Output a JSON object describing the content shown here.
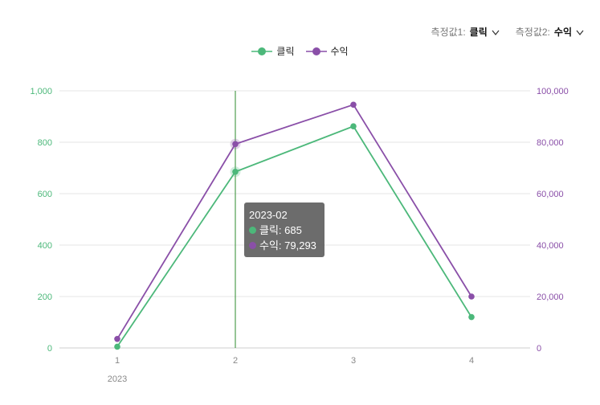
{
  "measures": [
    {
      "label": "측정값1:",
      "value": "클릭",
      "icon": "chevron-down-icon"
    },
    {
      "label": "측정값2:",
      "value": "수익",
      "icon": "chevron-down-icon"
    }
  ],
  "legend": [
    {
      "name": "클릭",
      "color": "#4cb87a"
    },
    {
      "name": "수익",
      "color": "#8a4fa8"
    }
  ],
  "tooltip": {
    "title": "2023-02",
    "rows": [
      {
        "label": "클릭: 685",
        "color": "#4cb87a"
      },
      {
        "label": "수익: 79,293",
        "color": "#8a4fa8"
      }
    ]
  },
  "chart_data": {
    "type": "line",
    "x": [
      "1",
      "2",
      "3",
      "4"
    ],
    "x_group_label": "2023",
    "y_left": {
      "ticks": [
        "0",
        "200",
        "400",
        "600",
        "800",
        "1,000"
      ],
      "ylim": [
        0,
        1000
      ],
      "color": "#4cb87a"
    },
    "y_right": {
      "ticks": [
        "0",
        "20,000",
        "40,000",
        "60,000",
        "80,000",
        "100,000"
      ],
      "ylim": [
        0,
        100000
      ],
      "color": "#8a4fa8"
    },
    "grid": true,
    "legend_position": "top-center",
    "highlight_index": 1,
    "series": [
      {
        "name": "클릭",
        "axis": "left",
        "color": "#4cb87a",
        "values": [
          5,
          685,
          862,
          120
        ]
      },
      {
        "name": "수익",
        "axis": "right",
        "color": "#8a4fa8",
        "values": [
          3500,
          79293,
          94600,
          20000
        ]
      }
    ]
  }
}
